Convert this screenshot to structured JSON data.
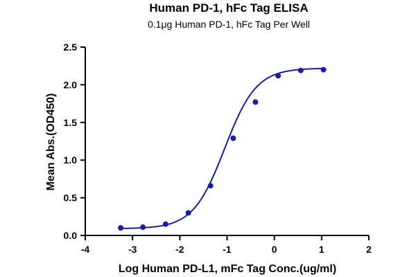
{
  "chart_data": {
    "type": "scatter",
    "title": "Human PD-1, hFc Tag ELISA",
    "subtitle": "0.1μg Human PD-1, hFc Tag Per Well",
    "xlabel": "Log Human PD-L1, mFc Tag Conc.(ug/ml)",
    "ylabel": "Mean Abs.(OD450)",
    "xlim": [
      -4,
      2
    ],
    "ylim": [
      0,
      2.5
    ],
    "xticks": [
      -4,
      -3,
      -2,
      -1,
      0,
      1,
      2
    ],
    "xtick_labels": [
      "-4",
      "-3",
      "-2",
      "-1",
      "0",
      "1",
      "2"
    ],
    "yticks": [
      0,
      0.5,
      1.0,
      1.5,
      2.0,
      2.5
    ],
    "ytick_labels": [
      "0.0",
      "0.5",
      "1.0",
      "1.5",
      "2.0",
      "2.5"
    ],
    "grid": false,
    "series": [
      {
        "x": [
          -3.25,
          -2.78,
          -2.3,
          -1.82,
          -1.35,
          -0.87,
          -0.4,
          0.08,
          0.56,
          1.04
        ],
        "y": [
          0.1,
          0.11,
          0.15,
          0.3,
          0.66,
          1.29,
          1.77,
          2.12,
          2.19,
          2.2
        ],
        "color": "#1a1aa8",
        "fit": "four-parameter logistic",
        "fit_params": {
          "bottom": 0.09,
          "top": 2.22,
          "log_ec50": -1.05,
          "hill_slope": 1.3
        }
      }
    ]
  }
}
